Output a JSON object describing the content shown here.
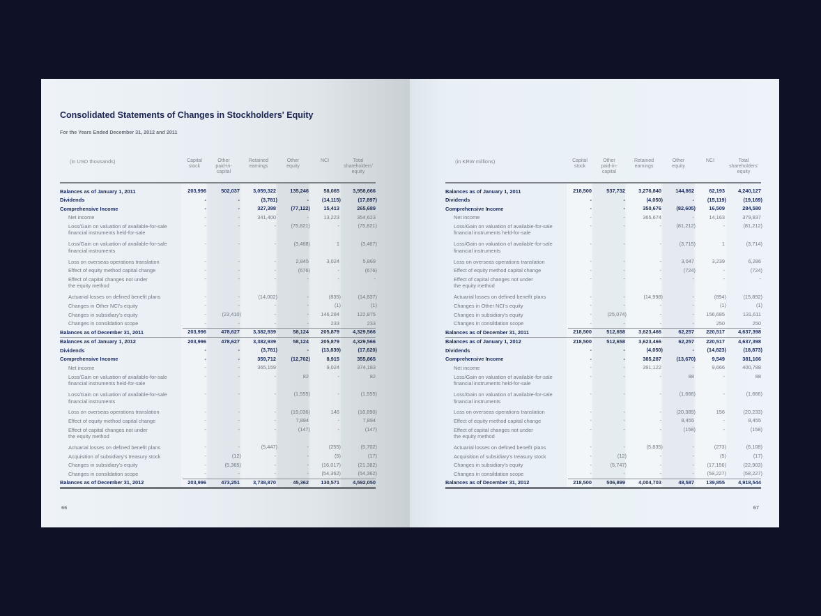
{
  "left_page": {
    "title": "Consolidated Statements of Changes in Stockholders' Equity",
    "subtitle": "For the Years Ended December 31, 2012 and 2011",
    "unit": "(in USD thousands)",
    "page_number": "66"
  },
  "right_page": {
    "unit": "(in KRW millions)",
    "page_number": "67"
  },
  "columns": [
    "Capital\nstock",
    "Other\npaid-in-\ncapital",
    "Retained\nearnings",
    "Other\nequity",
    "NCI",
    "Total\nshareholders'\nequity"
  ],
  "rows": [
    {
      "label": "Balances as of January 1, 2011",
      "style": "b"
    },
    {
      "label": "Dividends",
      "style": "b"
    },
    {
      "label": "Comprehensive Income",
      "style": "b"
    },
    {
      "label": "Net income",
      "style": "s"
    },
    {
      "label": "Loss/Gain on valuation of available-for-sale\nfinancial instruments held-for-sale",
      "style": "s"
    },
    {
      "label": "Loss/Gain on valuation of available-for-sale\nfinancial instruments",
      "style": "s"
    },
    {
      "label": "Loss on overseas operations translation",
      "style": "s"
    },
    {
      "label": "Effect of equity method capital change",
      "style": "s"
    },
    {
      "label": "Effect of capital changes not under\nthe equity method",
      "style": "s"
    },
    {
      "label": "Actuarial losses on defined benefit plans",
      "style": "s"
    },
    {
      "label": "Changes in Other NCI's equity",
      "style": "s"
    },
    {
      "label": "Changes in subsidiary's equity",
      "style": "s"
    },
    {
      "label": "Changes in consildation scope",
      "style": "s"
    },
    {
      "label": "Balances as of December 31, 2011",
      "style": "tot"
    },
    {
      "label": "Balances as of January 1, 2012",
      "style": "b"
    },
    {
      "label": "Dividends",
      "style": "b"
    },
    {
      "label": "Comprehensive Income",
      "style": "b"
    },
    {
      "label": "Net income",
      "style": "s"
    },
    {
      "label": "Loss/Gain on valuation of available-for-sale\nfinancial instruments held-for-sale",
      "style": "s"
    },
    {
      "label": "Loss/Gain on valuation of available-for-sale\nfinancial instruments",
      "style": "s"
    },
    {
      "label": "Loss on overseas operations translation",
      "style": "s"
    },
    {
      "label": "Effect of equity method capital change",
      "style": "s"
    },
    {
      "label": "Effect of capital changes not under\nthe equity method",
      "style": "s"
    },
    {
      "label": "Actuarial losses on defined benefit plans",
      "style": "s"
    },
    {
      "label": "Acquisition of subsidiary's treasury stock",
      "style": "s"
    },
    {
      "label": "Changes in subsidiary's equity",
      "style": "s"
    },
    {
      "label": "Changes in consildation scope",
      "style": "s"
    },
    {
      "label": "Balances as of December 31, 2012",
      "style": "end"
    }
  ],
  "usd_values": [
    [
      "203,996",
      "502,037",
      "3,059,322",
      "135,246",
      "58,065",
      "3,958,666"
    ],
    [
      "-",
      "-",
      "(3,781)",
      "-",
      "(14,115)",
      "(17,897)"
    ],
    [
      "-",
      "-",
      "327,398",
      "(77,122)",
      "15,413",
      "265,689"
    ],
    [
      "-",
      "-",
      "341,400",
      "-",
      "13,223",
      "354,623"
    ],
    [
      "-",
      "-",
      "-",
      "(75,821)",
      "-",
      "(75,821)"
    ],
    [
      "-",
      "-",
      "-",
      "(3,468)",
      "1",
      "(3,467)"
    ],
    [
      "-",
      "-",
      "-",
      "2,845",
      "3,024",
      "5,869"
    ],
    [
      "-",
      "-",
      "-",
      "(676)",
      "-",
      "(676)"
    ],
    [
      "-",
      "-",
      "-",
      "-",
      "-",
      "-"
    ],
    [
      "-",
      "-",
      "(14,002)",
      "-",
      "(835)",
      "(14,837)"
    ],
    [
      "-",
      "-",
      "-",
      "-",
      "(1)",
      "(1)"
    ],
    [
      "-",
      "(23,410)",
      "-",
      "-",
      "146,284",
      "122,875"
    ],
    [
      "-",
      "-",
      "-",
      "-",
      "233",
      "233"
    ],
    [
      "203,996",
      "478,627",
      "3,382,939",
      "58,124",
      "205,879",
      "4,329,566"
    ],
    [
      "203,996",
      "478,627",
      "3,382,939",
      "58,124",
      "205,879",
      "4,329,566"
    ],
    [
      "-",
      "-",
      "(3,781)",
      "-",
      "(13,839)",
      "(17,620)"
    ],
    [
      "-",
      "-",
      "359,712",
      "(12,762)",
      "8,915",
      "355,865"
    ],
    [
      "-",
      "-",
      "365,159",
      "",
      "9,024",
      "374,183"
    ],
    [
      "-",
      "-",
      "-",
      "82",
      "-",
      "82"
    ],
    [
      "-",
      "-",
      "-",
      "(1,555)",
      "-",
      "(1,555)"
    ],
    [
      "-",
      "-",
      "-",
      "(19,036)",
      "146",
      "(18,890)"
    ],
    [
      "-",
      "-",
      "-",
      "7,894",
      "-",
      "7,894"
    ],
    [
      "-",
      "-",
      "-",
      "(147)",
      "-",
      "(147)"
    ],
    [
      "-",
      "-",
      "(5,447)",
      "-",
      "(255)",
      "(5,702)"
    ],
    [
      "-",
      "(12)",
      "-",
      "-",
      "(5)",
      "(17)"
    ],
    [
      "-",
      "(5,365)",
      "-",
      "-",
      "(16,017)",
      "(21,382)"
    ],
    [
      "-",
      "-",
      "-",
      "-",
      "(54,362)",
      "(54,362)"
    ],
    [
      "203,996",
      "473,251",
      "3,738,870",
      "45,362",
      "130,571",
      "4,592,050"
    ]
  ],
  "krw_values": [
    [
      "218,500",
      "537,732",
      "3,276,840",
      "144,862",
      "62,193",
      "4,240,127"
    ],
    [
      "-",
      "-",
      "(4,050)",
      "-",
      "(15,119)",
      "(19,169)"
    ],
    [
      "-",
      "-",
      "350,676",
      "(82,605)",
      "16,509",
      "284,580"
    ],
    [
      "-",
      "-",
      "365,674",
      "-",
      "14,163",
      "379,837"
    ],
    [
      "-",
      "-",
      "-",
      "(81,212)",
      "-",
      "(81,212)"
    ],
    [
      "-",
      "-",
      "-",
      "(3,715)",
      "1",
      "(3,714)"
    ],
    [
      "-",
      "-",
      "-",
      "3,047",
      "3,239",
      "6,286"
    ],
    [
      "-",
      "-",
      "-",
      "(724)",
      "-",
      "(724)"
    ],
    [
      "-",
      "-",
      "-",
      "-",
      "-",
      "-"
    ],
    [
      "-",
      "-",
      "(14,998)",
      "-",
      "(894)",
      "(15,892)"
    ],
    [
      "-",
      "-",
      "-",
      "-",
      "(1)",
      "(1)"
    ],
    [
      "-",
      "(25,074)",
      "-",
      "-",
      "156,685",
      "131,611"
    ],
    [
      "-",
      "-",
      "-",
      "-",
      "250",
      "250"
    ],
    [
      "218,500",
      "512,658",
      "3,623,466",
      "62,257",
      "220,517",
      "4,637,398"
    ],
    [
      "218,500",
      "512,658",
      "3,623,466",
      "62,257",
      "220,517",
      "4,637,398"
    ],
    [
      "-",
      "-",
      "(4,050)",
      "-",
      "(14,823)",
      "(18,873)"
    ],
    [
      "-",
      "-",
      "385,287",
      "(13,670)",
      "9,549",
      "381,166"
    ],
    [
      "-",
      "-",
      "391,122",
      "-",
      "9,666",
      "400,788"
    ],
    [
      "-",
      "-",
      "-",
      "88",
      "-",
      "88"
    ],
    [
      "-",
      "-",
      "-",
      "(1,666)",
      "-",
      "(1,666)"
    ],
    [
      "-",
      "-",
      "-",
      "(20,389)",
      "156",
      "(20,233)"
    ],
    [
      "-",
      "-",
      "-",
      "8,455",
      "-",
      "8,455"
    ],
    [
      "-",
      "-",
      "-",
      "(158)",
      "-",
      "(158)"
    ],
    [
      "-",
      "-",
      "(5,835)",
      "-",
      "(273)",
      "(6,108)"
    ],
    [
      "-",
      "(12)",
      "-",
      "-",
      "(5)",
      "(17)"
    ],
    [
      "-",
      "(5,747)",
      "-",
      "-",
      "(17,156)",
      "(22,903)"
    ],
    [
      "-",
      "-",
      "-",
      "-",
      "(58,227)",
      "(58,227)"
    ],
    [
      "218,500",
      "506,899",
      "4,004,703",
      "48,587",
      "139,855",
      "4,918,544"
    ]
  ],
  "colors": {
    "background": "#0f1227",
    "heading": "#1a2350",
    "bold_text": "#1b2a5a",
    "body_text": "#707780"
  }
}
